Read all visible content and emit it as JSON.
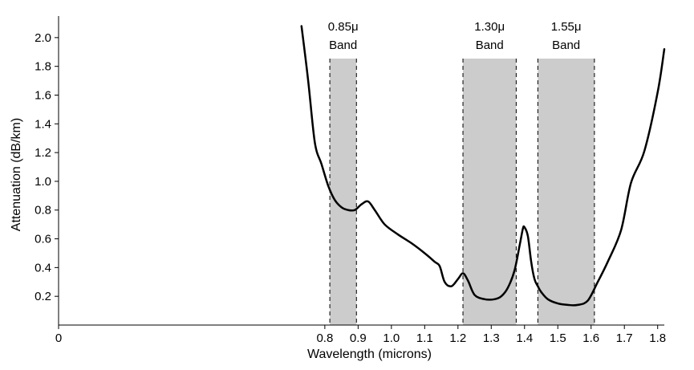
{
  "chart_data": {
    "type": "line",
    "xlabel": "Wavelength (microns)",
    "ylabel": "Attenuation (dB/km)",
    "xlim": [
      0,
      1.82
    ],
    "ylim": [
      0,
      2.15
    ],
    "xticks": [
      {
        "value": 0,
        "label": "0"
      },
      {
        "value": 0.8,
        "label": "0.8"
      },
      {
        "value": 0.9,
        "label": "0.9"
      },
      {
        "value": 1.0,
        "label": "1.0"
      },
      {
        "value": 1.1,
        "label": "1.1"
      },
      {
        "value": 1.2,
        "label": "1.2"
      },
      {
        "value": 1.3,
        "label": "1.3"
      },
      {
        "value": 1.4,
        "label": "1.4"
      },
      {
        "value": 1.5,
        "label": "1.5"
      },
      {
        "value": 1.6,
        "label": "1.6"
      },
      {
        "value": 1.7,
        "label": "1.7"
      },
      {
        "value": 1.8,
        "label": "1.8"
      }
    ],
    "yticks": [
      {
        "value": 0.2,
        "label": "0.2"
      },
      {
        "value": 0.4,
        "label": "0.4"
      },
      {
        "value": 0.6,
        "label": "0.6"
      },
      {
        "value": 0.8,
        "label": "0.8"
      },
      {
        "value": 1.0,
        "label": "1.0"
      },
      {
        "value": 1.2,
        "label": "1.2"
      },
      {
        "value": 1.4,
        "label": "1.4"
      },
      {
        "value": 1.6,
        "label": "1.6"
      },
      {
        "value": 1.8,
        "label": "1.8"
      },
      {
        "value": 2.0,
        "label": "2.0"
      }
    ],
    "bands": [
      {
        "start": 0.815,
        "end": 0.895,
        "line1": "0.85μ",
        "line2": "Band"
      },
      {
        "start": 1.215,
        "end": 1.375,
        "line1": "1.30μ",
        "line2": "Band"
      },
      {
        "start": 1.44,
        "end": 1.61,
        "line1": "1.55μ",
        "line2": "Band"
      }
    ],
    "band_color": "#cccccc",
    "line_color": "#000000",
    "series": [
      {
        "x": [
          0.73,
          0.75,
          0.77,
          0.79,
          0.81,
          0.83,
          0.85,
          0.87,
          0.89,
          0.91,
          0.93,
          0.95,
          0.98,
          1.02,
          1.06,
          1.1,
          1.13,
          1.145,
          1.16,
          1.18,
          1.2,
          1.215,
          1.23,
          1.25,
          1.28,
          1.31,
          1.33,
          1.35,
          1.37,
          1.385,
          1.395,
          1.4,
          1.41,
          1.42,
          1.43,
          1.44,
          1.45,
          1.47,
          1.5,
          1.53,
          1.56,
          1.59,
          1.62,
          1.65,
          1.69,
          1.72,
          1.76,
          1.8,
          1.82
        ],
        "y": [
          2.08,
          1.7,
          1.27,
          1.12,
          0.97,
          0.87,
          0.82,
          0.8,
          0.8,
          0.84,
          0.86,
          0.8,
          0.7,
          0.63,
          0.57,
          0.5,
          0.44,
          0.41,
          0.3,
          0.27,
          0.32,
          0.36,
          0.31,
          0.21,
          0.18,
          0.18,
          0.2,
          0.26,
          0.38,
          0.55,
          0.67,
          0.68,
          0.62,
          0.44,
          0.32,
          0.27,
          0.23,
          0.18,
          0.15,
          0.14,
          0.14,
          0.17,
          0.3,
          0.44,
          0.66,
          0.99,
          1.21,
          1.62,
          1.92
        ]
      }
    ]
  }
}
